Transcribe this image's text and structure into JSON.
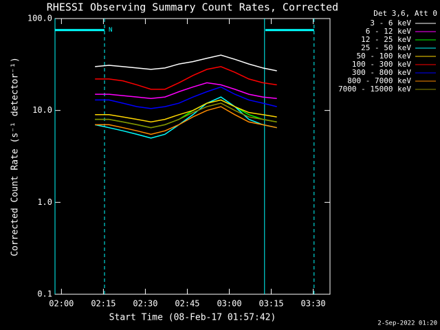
{
  "chart_data": {
    "type": "line",
    "title": "RHESSI Observing Summary Count Rates, Corrected",
    "x_label": "Start Time (08-Feb-17 01:57:42)",
    "y_label": "Corrected Count Rate (s⁻¹ detector⁻¹)",
    "legend_title": "Det 3,6, Att 0",
    "legend_position": "outside-right",
    "footer": "2-Sep-2022 01:20",
    "log_y": true,
    "xlim": [
      117.7,
      216
    ],
    "xticks": [
      {
        "value": 120,
        "label": "02:00"
      },
      {
        "value": 135,
        "label": "02:15"
      },
      {
        "value": 150,
        "label": "02:30"
      },
      {
        "value": 165,
        "label": "02:45"
      },
      {
        "value": 180,
        "label": "03:00"
      },
      {
        "value": 195,
        "label": "03:15"
      },
      {
        "value": 210,
        "label": "03:30"
      }
    ],
    "ylim": [
      0.1,
      100
    ],
    "yticks": [
      {
        "value": 0.1,
        "label": "0.1"
      },
      {
        "value": 1,
        "label": "1.0"
      },
      {
        "value": 10,
        "label": "10.0"
      },
      {
        "value": 100,
        "label": "100.0"
      }
    ],
    "markers": {
      "color": "#00ffff",
      "solid": [
        117.7,
        192.6
      ],
      "dashed": [
        135.4,
        210.3
      ],
      "bars": [
        [
          117.7,
          135.4
        ],
        [
          192.9,
          210.3
        ]
      ],
      "bar_level": 75,
      "bar_label": "N"
    },
    "x": [
      132,
      137,
      142,
      147,
      152,
      157,
      162,
      167,
      172,
      177,
      182,
      187,
      192,
      197
    ],
    "series": [
      {
        "name": "3 - 6 keV",
        "color": "#ffffff",
        "values": [
          30,
          31,
          30,
          29,
          28,
          29,
          32,
          34,
          37,
          40,
          36,
          32,
          29,
          27
        ]
      },
      {
        "name": "6 - 12 keV",
        "color": "#ff00ff",
        "values": [
          15,
          15,
          14.5,
          14,
          13.5,
          14,
          16,
          18,
          20,
          19,
          17,
          15,
          14,
          13.5
        ]
      },
      {
        "name": "12 - 25 keV",
        "color": "#00ff00",
        "values": [
          8,
          8,
          7.5,
          7,
          6.5,
          7,
          8,
          10,
          12,
          13,
          11,
          9,
          8,
          7.5
        ]
      },
      {
        "name": "25 - 50 keV",
        "color": "#00ffff",
        "values": [
          7,
          6.5,
          6,
          5.5,
          5,
          5.5,
          7,
          9,
          12,
          14,
          11,
          8,
          7,
          6.5
        ]
      },
      {
        "name": "50 - 100 keV",
        "color": "#ffd700",
        "values": [
          9,
          9,
          8.5,
          8,
          7.5,
          8,
          9,
          10,
          12,
          13,
          11,
          9.5,
          9,
          8.5
        ]
      },
      {
        "name": "100 - 300 keV",
        "color": "#ff0000",
        "values": [
          22,
          22,
          21,
          19,
          17,
          17,
          20,
          24,
          28,
          30,
          26,
          22,
          20,
          19
        ]
      },
      {
        "name": "300 - 800 keV",
        "color": "#0000ff",
        "values": [
          13,
          13,
          12,
          11,
          10.5,
          11,
          12,
          14,
          16,
          18,
          15,
          13,
          12,
          11
        ]
      },
      {
        "name": "800 - 7000 keV",
        "color": "#ff8c00",
        "values": [
          7,
          7,
          6.5,
          6,
          5.5,
          6,
          7,
          8.5,
          10,
          11,
          9,
          7.5,
          7,
          6.5
        ]
      },
      {
        "name": "7000 - 15000 keV",
        "color": "#8b8b00",
        "values": [
          8,
          8,
          7.5,
          7,
          6.5,
          7,
          8,
          9.5,
          11,
          12,
          10,
          8.5,
          8,
          7.5
        ]
      }
    ]
  }
}
